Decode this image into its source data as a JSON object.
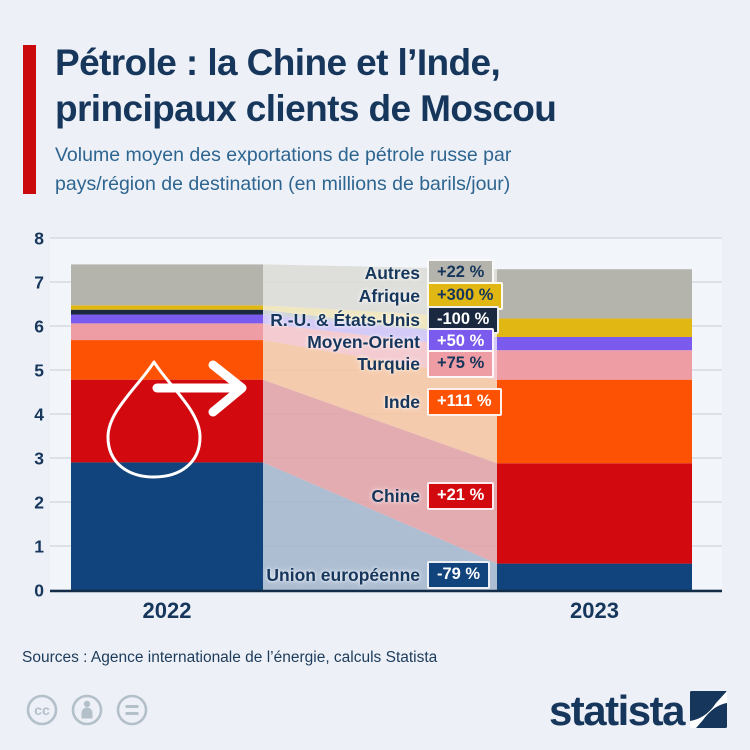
{
  "header": {
    "title_line1": "Pétrole : la Chine et l’Inde,",
    "title_line2": "principaux clients de Moscou",
    "subtitle_line1": "Volume moyen des exportations de pétrole russe par",
    "subtitle_line2": "pays/région de destination (en millions de barils/jour)",
    "accent_color": "#c9090c"
  },
  "chart_data": {
    "type": "area",
    "subtype": "alluvial-stacked-flow",
    "title": "",
    "xlabel": "",
    "ylabel": "millions de barils/jour",
    "categories": [
      "2022",
      "2023"
    ],
    "ylim": [
      0,
      8
    ],
    "y_ticks": [
      0,
      1,
      2,
      3,
      4,
      5,
      6,
      7,
      8
    ],
    "grid": true,
    "icon": "oil-drop-arrow-right",
    "series": [
      {
        "name": "Union européenne",
        "values": [
          2.9,
          0.6
        ],
        "change": "-79 %",
        "color": "#11437c",
        "band_color": "#a5b8ce",
        "badge_text_color": "#ffffff"
      },
      {
        "name": "Chine",
        "values": [
          1.88,
          2.28
        ],
        "change": "+21 %",
        "color": "#d20a10",
        "band_color": "#e1a4a9",
        "badge_text_color": "#ffffff"
      },
      {
        "name": "Inde",
        "values": [
          0.9,
          1.9
        ],
        "change": "+111 %",
        "color": "#fd5103",
        "band_color": "#f5c6a4",
        "badge_text_color": "#ffffff"
      },
      {
        "name": "Turquie",
        "values": [
          0.38,
          0.67
        ],
        "change": "+75 %",
        "color": "#ef9da4",
        "band_color": "#f3c7cc",
        "badge_text_color": "#16365c"
      },
      {
        "name": "Moyen-Orient",
        "values": [
          0.2,
          0.3
        ],
        "change": "+50 %",
        "color": "#7a5bee",
        "band_color": "#cfc5f6",
        "badge_text_color": "#ffffff"
      },
      {
        "name": "R.-U. & États-Unis",
        "values": [
          0.11,
          0.0
        ],
        "change": "-100 %",
        "color": "#1b2940",
        "band_color": "#ccd1d8",
        "badge_text_color": "#ffffff"
      },
      {
        "name": "Afrique",
        "values": [
          0.1,
          0.42
        ],
        "change": "+300 %",
        "color": "#e0b713",
        "band_color": "#efe5b8",
        "badge_text_color": "#16365c"
      },
      {
        "name": "Autres",
        "values": [
          0.93,
          1.12
        ],
        "change": "+22 %",
        "color": "#b4b4ac",
        "band_color": "#dcddd7",
        "badge_text_color": "#16365c"
      }
    ]
  },
  "footer": {
    "source": "Sources : Agence internationale de l’énergie, calculs Statista",
    "logo_text": "statista",
    "cc_text": "cc"
  }
}
